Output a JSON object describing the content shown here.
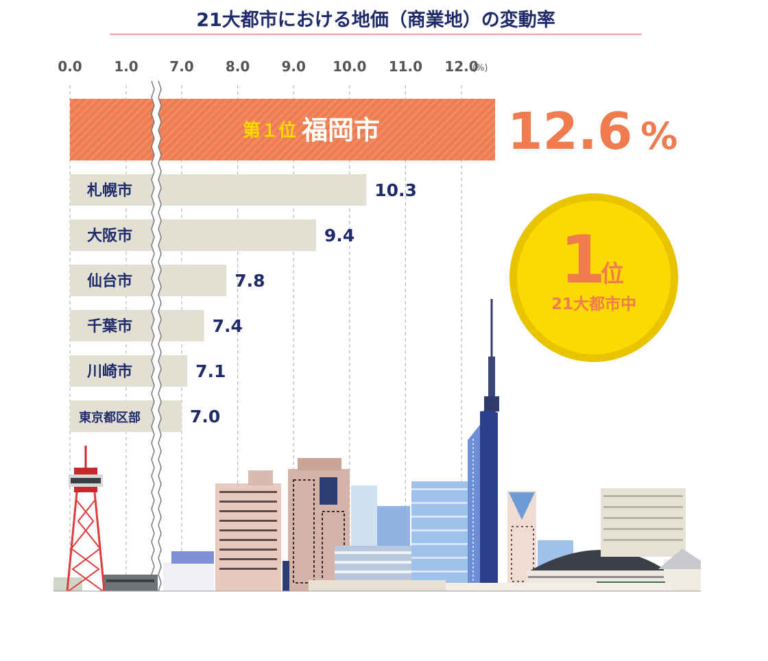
{
  "chart_data": {
    "type": "bar",
    "orientation": "horizontal",
    "title": "21大都市における地価（商業地）の変動率",
    "unit": "(%)",
    "axis_break": "between 1.0 and 7.0",
    "ticks": [
      {
        "value": 0.0,
        "label": "0.0"
      },
      {
        "value": 1.0,
        "label": "1.0"
      },
      {
        "value": 7.0,
        "label": "7.0"
      },
      {
        "value": 8.0,
        "label": "8.0"
      },
      {
        "value": 9.0,
        "label": "9.0"
      },
      {
        "value": 10.0,
        "label": "10.0"
      },
      {
        "value": 11.0,
        "label": "11.0"
      },
      {
        "value": 12.0,
        "label": "12.0"
      }
    ],
    "highlight": {
      "rank_label": "第１位",
      "category": "福岡市",
      "value": 12.6,
      "value_label": "12.6",
      "percent_sign": "%"
    },
    "categories": [
      "札幌市",
      "大阪市",
      "仙台市",
      "千葉市",
      "川崎市",
      "東京都区部"
    ],
    "values": [
      10.3,
      9.4,
      7.8,
      7.4,
      7.1,
      7.0
    ],
    "value_labels": [
      "10.3",
      "9.4",
      "7.8",
      "7.4",
      "7.1",
      "7.0"
    ],
    "badge": {
      "rank": "1",
      "suffix": "位",
      "caption": "21大都市中"
    }
  },
  "colors": {
    "navy": "#1f2a6b",
    "orange": "#ef7b4e",
    "bar_gray": "#e2e0d3",
    "gold": "#fcd900",
    "gold_ring": "#e8c300",
    "accent": "#e8a3a8"
  }
}
